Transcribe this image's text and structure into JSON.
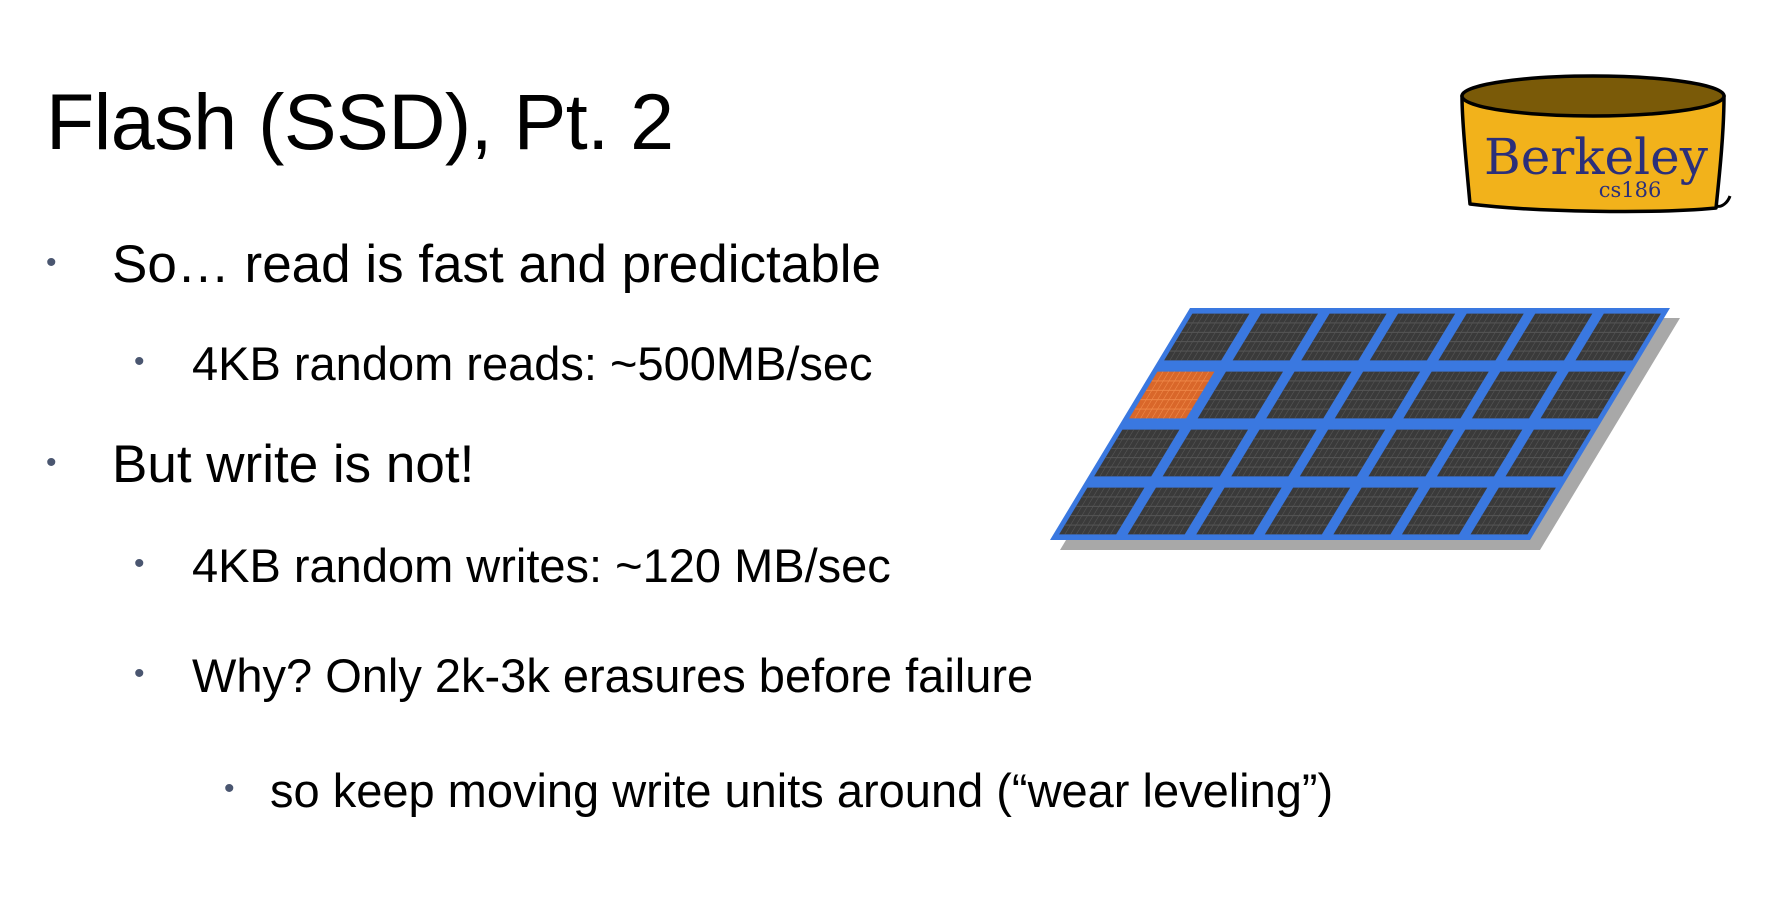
{
  "slide": {
    "title": "Flash (SSD), Pt. 2",
    "bullets": [
      {
        "text": "So… read is fast and predictable",
        "level": 1
      },
      {
        "text": "4KB random reads: ~500MB/sec",
        "level": 2
      },
      {
        "text": "But write is not!",
        "level": 1
      },
      {
        "text": "4KB random writes: ~120 MB/sec",
        "level": 2
      },
      {
        "text": "Why? Only 2k-3k erasures before failure",
        "level": 2
      },
      {
        "text": "so keep moving write units around (“wear leveling”)",
        "level": 3
      }
    ],
    "bullet_glyph": "•"
  },
  "logo": {
    "name": "Berkeley",
    "course": "cs186",
    "colors": {
      "fill": "#f2b21b",
      "rim": "#7a5a08",
      "text": "#2b2f7a"
    }
  },
  "diagram": {
    "icon": "flash-memory-grid",
    "colors": {
      "frame": "#3a78e0",
      "cell": "#3a3a3a",
      "highlight": "#d9672a",
      "shadow": "#a8a8a8"
    }
  }
}
